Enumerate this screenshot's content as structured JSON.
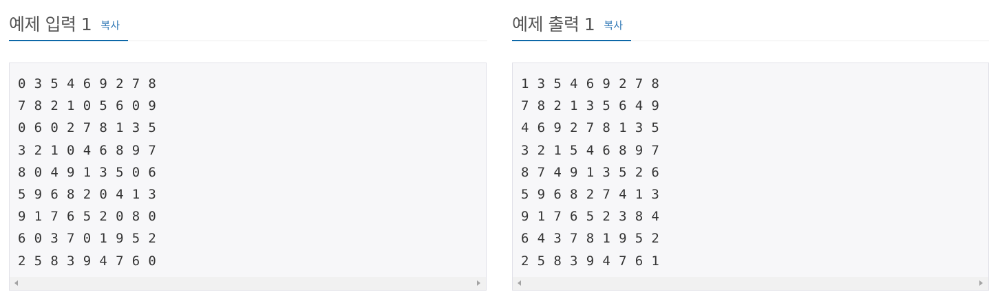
{
  "input_panel": {
    "title": "예제 입력 1",
    "copy_label": "복사",
    "lines": [
      "0 3 5 4 6 9 2 7 8",
      "7 8 2 1 0 5 6 0 9",
      "0 6 0 2 7 8 1 3 5",
      "3 2 1 0 4 6 8 9 7",
      "8 0 4 9 1 3 5 0 6",
      "5 9 6 8 2 0 4 1 3",
      "9 1 7 6 5 2 0 8 0",
      "6 0 3 7 0 1 9 5 2",
      "2 5 8 3 9 4 7 6 0"
    ]
  },
  "output_panel": {
    "title": "예제 출력 1",
    "copy_label": "복사",
    "lines": [
      "1 3 5 4 6 9 2 7 8",
      "7 8 2 1 3 5 6 4 9",
      "4 6 9 2 7 8 1 3 5",
      "3 2 1 5 4 6 8 9 7",
      "8 7 4 9 1 3 5 2 6",
      "5 9 6 8 2 7 4 1 3",
      "9 1 7 6 5 2 3 8 4",
      "6 4 3 7 8 1 9 5 2",
      "2 5 8 3 9 4 7 6 1"
    ]
  },
  "colors": {
    "accent": "#0d68a8",
    "link": "#337ab7",
    "code_bg": "#f7f7f9"
  },
  "icons": {
    "scroll_left": "scroll-left-arrow-icon",
    "scroll_right": "scroll-right-arrow-icon"
  }
}
